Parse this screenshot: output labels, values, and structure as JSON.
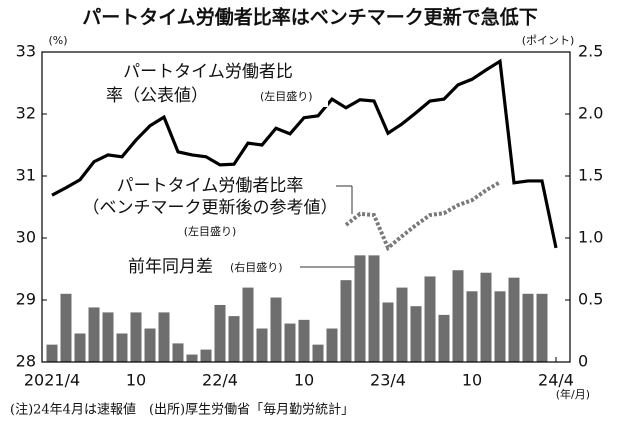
{
  "chart_data": {
    "type": "bar-line",
    "title": "パートタイム労働者比率はベンチマーク更新で急低下",
    "y_label": "(%)",
    "y2_label": "(ポイント)",
    "x_unit": "(年/月)",
    "categories": [
      "2021/4",
      null,
      null,
      null,
      null,
      null,
      "10",
      null,
      null,
      null,
      null,
      null,
      "22/4",
      null,
      null,
      null,
      null,
      null,
      "10",
      null,
      null,
      null,
      null,
      null,
      "23/4",
      null,
      null,
      null,
      null,
      null,
      "10",
      null,
      null,
      null,
      null,
      null,
      "24/4"
    ],
    "ylim": [
      28,
      33
    ],
    "yticks": [
      28,
      29,
      30,
      31,
      32,
      33
    ],
    "y2lim": [
      0,
      2.5
    ],
    "y2ticks": [
      0,
      0.5,
      {
        "value": 1,
        "label": "1.0"
      },
      1.5,
      {
        "value": 2,
        "label": "2.0"
      },
      2.5
    ],
    "series": [
      {
        "type": "bar",
        "axis": "y2",
        "name": "前年同月差",
        "note": "(右目盛り)",
        "color": "#6e6e6e",
        "values": [
          0.14,
          0.55,
          0.23,
          0.44,
          0.4,
          0.23,
          0.4,
          0.27,
          0.4,
          0.15,
          0.06,
          0.1,
          0.46,
          0.37,
          0.6,
          0.27,
          0.52,
          0.31,
          0.34,
          0.14,
          0.27,
          0.66,
          0.86,
          0.86,
          0.48,
          0.6,
          0.45,
          0.69,
          0.38,
          0.74,
          0.57,
          0.72,
          0.57,
          0.68,
          0.55,
          0.55,
          null
        ]
      },
      {
        "type": "line",
        "label_lines": [
          "パートタイム労働者比",
          "率（公表値）"
        ],
        "note": "(左目盛り)",
        "color": "#000000",
        "values": [
          30.69,
          30.81,
          30.94,
          31.23,
          31.34,
          31.31,
          31.58,
          31.81,
          31.95,
          31.39,
          31.34,
          31.31,
          31.18,
          31.19,
          31.53,
          31.5,
          31.77,
          31.68,
          31.94,
          31.97,
          32.24,
          32.1,
          32.23,
          32.21,
          31.69,
          31.84,
          32.02,
          32.21,
          32.24,
          32.47,
          32.56,
          32.71,
          32.85,
          30.89,
          30.92,
          30.92,
          29.84
        ]
      },
      {
        "type": "line",
        "dashed": true,
        "label_lines": [
          "パートタイム労働者比率",
          "（ベンチマーク更新後の参考値）"
        ],
        "note": "(左目盛り)",
        "color": "#7a7a7a",
        "values": [
          null,
          null,
          null,
          null,
          null,
          null,
          null,
          null,
          null,
          null,
          null,
          null,
          null,
          null,
          null,
          null,
          null,
          null,
          null,
          null,
          null,
          30.21,
          30.39,
          30.37,
          29.84,
          30.03,
          30.21,
          30.37,
          30.4,
          30.53,
          30.61,
          30.77,
          30.9,
          null,
          null,
          null,
          null
        ]
      }
    ],
    "footnote": "(注)24年4月は速報値　(出所)厚生労働省「毎月勤労統計」"
  }
}
